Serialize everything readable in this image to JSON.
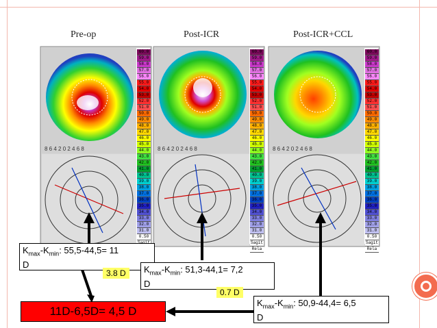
{
  "headers": [
    "Pre-op",
    "Post-ICR",
    "Post-ICR+CCL"
  ],
  "scale_values": [
    "60.0",
    "59.0",
    "58.0",
    "57.0",
    "56.0",
    "55.0",
    "54.0",
    "53.0",
    "52.0",
    "51.0",
    "50.0",
    "49.0",
    "48.0",
    "47.0",
    "46.0",
    "45.0",
    "44.0",
    "43.0",
    "42.0",
    "41.0",
    "40.0",
    "39.0",
    "38.0",
    "37.0",
    "36.0",
    "35.0",
    "34.0",
    "33.0",
    "32.0",
    "31.0",
    "0.50"
  ],
  "scale_colors": [
    "#7a0a5a",
    "#a01a8a",
    "#c838c8",
    "#e070e0",
    "#ff88ff",
    "#ff1a1a",
    "#e00000",
    "#c00000",
    "#ff3030",
    "#ff5050",
    "#ff6a00",
    "#ff8c00",
    "#ffb000",
    "#ffd700",
    "#ffff00",
    "#d0ff00",
    "#90ff20",
    "#40e040",
    "#20c020",
    "#00a030",
    "#00c090",
    "#00d0d0",
    "#00a0e0",
    "#0070e0",
    "#0040c0",
    "#2020c0",
    "#5050d0",
    "#8080e0",
    "#a0a0e8",
    "#c0c0f0",
    "#ffffff"
  ],
  "pre": {
    "line1_main": "K",
    "line1_sub_a": "max",
    "line1_mid": "-K",
    "line1_sub_b": "min",
    "line1_rest": ": 55,5-44,5= 11",
    "line2": "D",
    "diff": "3.8 D"
  },
  "post": {
    "line1_main": "K",
    "line1_sub_a": "max",
    "line1_mid": "-K",
    "line1_sub_b": "min",
    "line1_rest": ": 51,3-44,1= 7,2",
    "line2": "D",
    "diff": "0.7 D"
  },
  "ccl": {
    "line1_main": "K",
    "line1_sub_a": "max",
    "line1_mid": "-K",
    "line1_sub_b": "min",
    "line1_rest": ": 50,9-44,4= 6,5",
    "line2": "D"
  },
  "result": "11D-6,5D= 4,5 D",
  "sagittal_label": "Sagit",
  "rel_label": "Rela"
}
